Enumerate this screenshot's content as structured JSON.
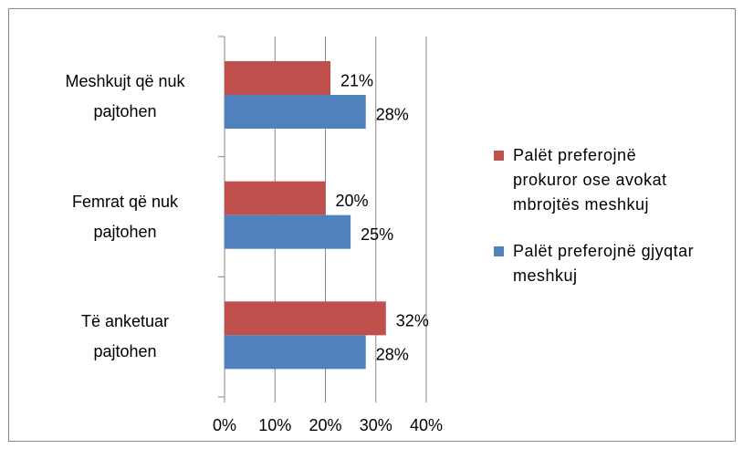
{
  "chart_data": {
    "type": "barh",
    "categories": [
      "Meshkujt që nuk pajtohen",
      "Femrat që nuk pajtohen",
      "Të anketuar pajtohen"
    ],
    "series": [
      {
        "name": "Palët preferojnë prokuror ose avokat mbrojtës meshkuj",
        "color": "#c0504d",
        "values": [
          21,
          20,
          32
        ],
        "value_labels": [
          "21%",
          "20%",
          "32%"
        ]
      },
      {
        "name": "Palët preferojnë gjyqtar meshkuj",
        "color": "#4f81bd",
        "values": [
          28,
          25,
          28
        ],
        "value_labels": [
          "28%",
          "25%",
          "28%"
        ]
      }
    ],
    "xlim": [
      0,
      40
    ],
    "xticks": [
      {
        "value": 0,
        "label": "0%"
      },
      {
        "value": 10,
        "label": "10%"
      },
      {
        "value": 20,
        "label": "20%"
      },
      {
        "value": 30,
        "label": "30%"
      },
      {
        "value": 40,
        "label": "40%"
      }
    ],
    "grid": true,
    "legend": "right"
  }
}
